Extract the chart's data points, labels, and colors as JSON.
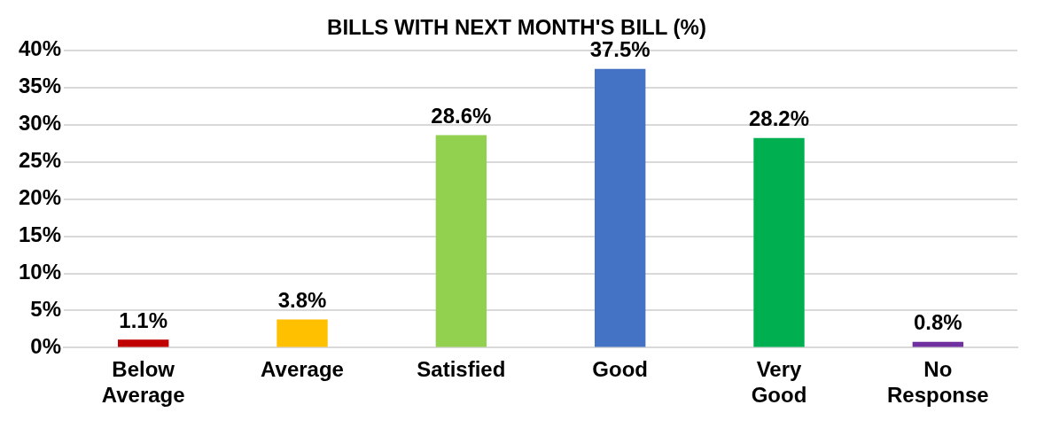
{
  "chart_data": {
    "type": "bar",
    "title": "BILLS WITH NEXT MONTH'S BILL (%)",
    "categories": [
      "Below Average",
      "Average",
      "Satisfied",
      "Good",
      "Very Good",
      "No Response"
    ],
    "values": [
      1.1,
      3.8,
      28.6,
      37.5,
      28.2,
      0.8
    ],
    "colors": [
      "#c00000",
      "#ffc000",
      "#92d050",
      "#4472c4",
      "#00b050",
      "#7030a0"
    ],
    "value_labels": [
      "1.1%",
      "3.8%",
      "28.6%",
      "37.5%",
      "28.2%",
      "0.8%"
    ],
    "ylim": [
      0,
      40
    ],
    "yticks": [
      {
        "value": 0,
        "label": "0%"
      },
      {
        "value": 5,
        "label": "5%"
      },
      {
        "value": 10,
        "label": "10%"
      },
      {
        "value": 15,
        "label": "15%"
      },
      {
        "value": 20,
        "label": "20%"
      },
      {
        "value": 25,
        "label": "25%"
      },
      {
        "value": 30,
        "label": "30%"
      },
      {
        "value": 35,
        "label": "35%"
      },
      {
        "value": 40,
        "label": "40%"
      }
    ],
    "grid": "y",
    "legend": false
  }
}
